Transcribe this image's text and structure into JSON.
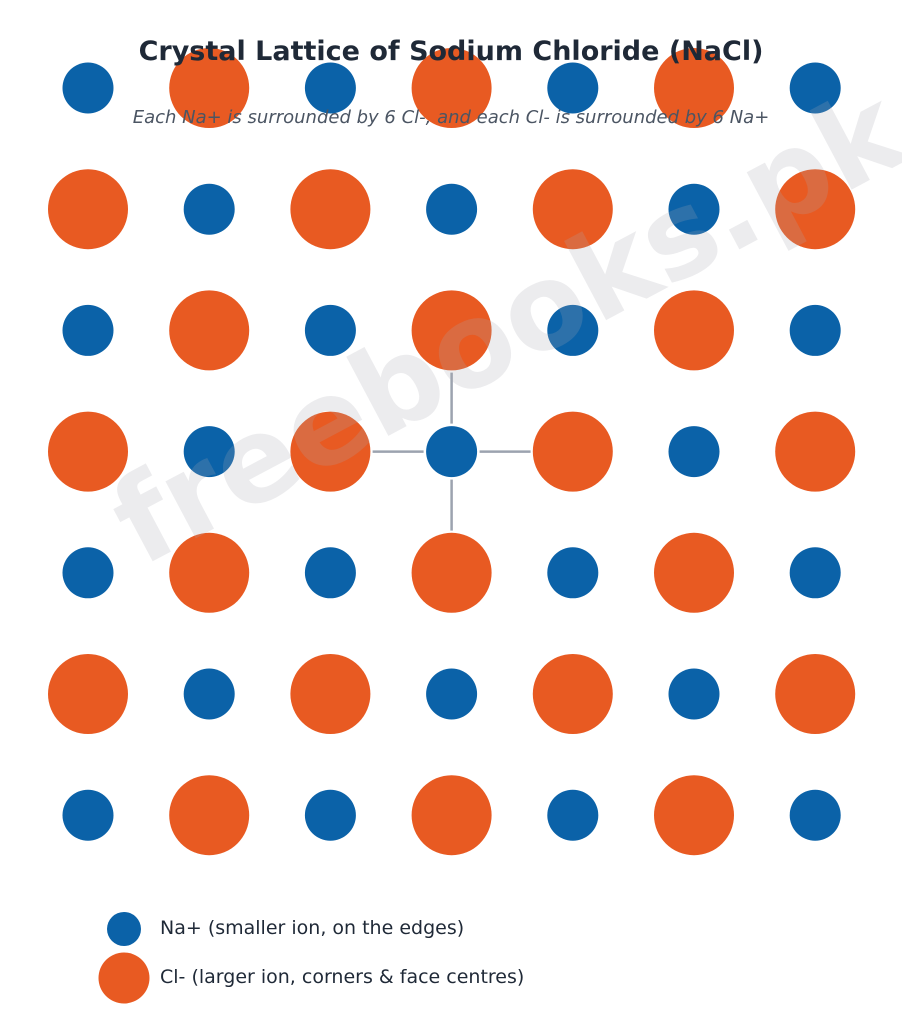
{
  "title": "Crystal Lattice of Sodium Chloride (NaCl)",
  "subtitle": "Each Na+ is surrounded by 6 Cl-, and each Cl- is surrounded by 6 Na+",
  "grid": {
    "rows": 7,
    "cols": 7,
    "first_ion": "na"
  },
  "highlight": {
    "row": 3,
    "col": 3,
    "bonds": [
      "up",
      "down",
      "left",
      "right"
    ]
  },
  "ions": {
    "na": {
      "color": "#0b62a8",
      "relative_size": "small"
    },
    "cl": {
      "color": "#e85a22",
      "relative_size": "large"
    }
  },
  "bond_color": "#9ca3af",
  "legend": [
    {
      "ion": "na",
      "label": "Na+ (smaller ion, on the edges)"
    },
    {
      "ion": "cl",
      "label": "Cl- (larger ion, corners & face centres)"
    }
  ],
  "watermark": "freebooks.pk"
}
